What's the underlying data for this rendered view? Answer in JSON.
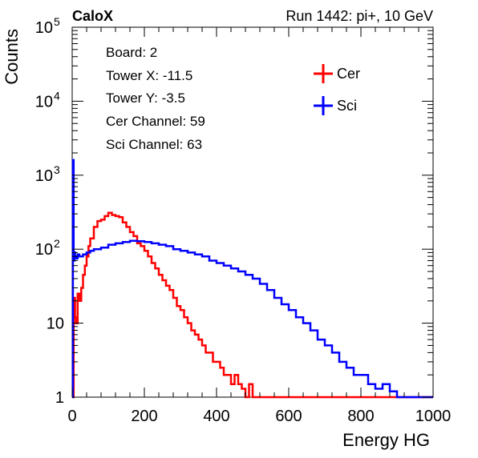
{
  "header": {
    "brand": "CaloX",
    "run_info": "Run 1442: pi+, 10 GeV"
  },
  "info_box": [
    {
      "label": "Board: 2"
    },
    {
      "label": "Tower X: -11.5"
    },
    {
      "label": "Tower Y: -3.5"
    },
    {
      "label": "Cer Channel: 59"
    },
    {
      "label": "Sci Channel: 63"
    }
  ],
  "chart_data": {
    "type": "line",
    "xlabel": "Energy HG",
    "ylabel": "Counts",
    "xlim": [
      0,
      1000
    ],
    "ylim": [
      1,
      100000
    ],
    "yscale": "log",
    "x_ticks": [
      "0",
      "200",
      "400",
      "600",
      "800",
      "1000"
    ],
    "y_ticks": [
      {
        "value": 1,
        "label": "1"
      },
      {
        "value": 10,
        "label": "10"
      },
      {
        "value": 100,
        "label": "10",
        "exp": "2"
      },
      {
        "value": 1000,
        "label": "10",
        "exp": "3"
      },
      {
        "value": 10000,
        "label": "10",
        "exp": "4"
      },
      {
        "value": 100000,
        "label": "10",
        "exp": "5"
      }
    ],
    "legend_position": "top-right",
    "series": [
      {
        "name": "Cer",
        "color": "#ff0000",
        "x": [
          0,
          2,
          4,
          6,
          8,
          10,
          15,
          20,
          25,
          30,
          35,
          40,
          45,
          50,
          60,
          70,
          80,
          90,
          100,
          110,
          120,
          130,
          140,
          150,
          160,
          170,
          180,
          190,
          200,
          210,
          220,
          230,
          240,
          250,
          260,
          270,
          280,
          290,
          300,
          310,
          320,
          330,
          340,
          350,
          360,
          370,
          380,
          390,
          400,
          410,
          420,
          430,
          440,
          450,
          460,
          470,
          480,
          490,
          500,
          510,
          520,
          530,
          540,
          550,
          560,
          570,
          580,
          590,
          600,
          620,
          640,
          660,
          680,
          700,
          1000
        ],
        "y": [
          1,
          1,
          20,
          22,
          12,
          10,
          25,
          20,
          30,
          45,
          60,
          80,
          110,
          140,
          200,
          240,
          250,
          280,
          310,
          290,
          280,
          270,
          230,
          200,
          170,
          150,
          120,
          110,
          95,
          80,
          65,
          55,
          45,
          38,
          32,
          28,
          22,
          17,
          15,
          12,
          10,
          8,
          7,
          6,
          5,
          4,
          4,
          3,
          3,
          2.5,
          2,
          2,
          1.5,
          2,
          1.5,
          1.3,
          1,
          1.5,
          1,
          1,
          1,
          1,
          1,
          1,
          1,
          1,
          1,
          1,
          1,
          1,
          1,
          1,
          1,
          1,
          1
        ]
      },
      {
        "name": "Sci",
        "color": "#0000ff",
        "x": [
          0,
          2,
          4,
          6,
          8,
          10,
          15,
          20,
          30,
          40,
          50,
          60,
          80,
          100,
          120,
          140,
          160,
          180,
          200,
          220,
          240,
          260,
          280,
          300,
          320,
          340,
          360,
          380,
          400,
          420,
          440,
          460,
          480,
          500,
          520,
          540,
          560,
          580,
          600,
          620,
          640,
          660,
          680,
          700,
          720,
          740,
          760,
          780,
          800,
          820,
          840,
          860,
          880,
          900,
          920,
          940,
          960,
          980,
          1000
        ],
        "y": [
          1,
          1600,
          70,
          90,
          80,
          75,
          85,
          80,
          85,
          90,
          95,
          100,
          105,
          115,
          120,
          125,
          130,
          128,
          125,
          120,
          115,
          110,
          100,
          95,
          90,
          85,
          80,
          70,
          65,
          60,
          55,
          50,
          45,
          40,
          34,
          28,
          22,
          18,
          15,
          12,
          10,
          8,
          6,
          5,
          4,
          3,
          2.5,
          2,
          2,
          1.5,
          1.3,
          1.5,
          1.2,
          1,
          1,
          1,
          1,
          1,
          1
        ]
      }
    ]
  }
}
